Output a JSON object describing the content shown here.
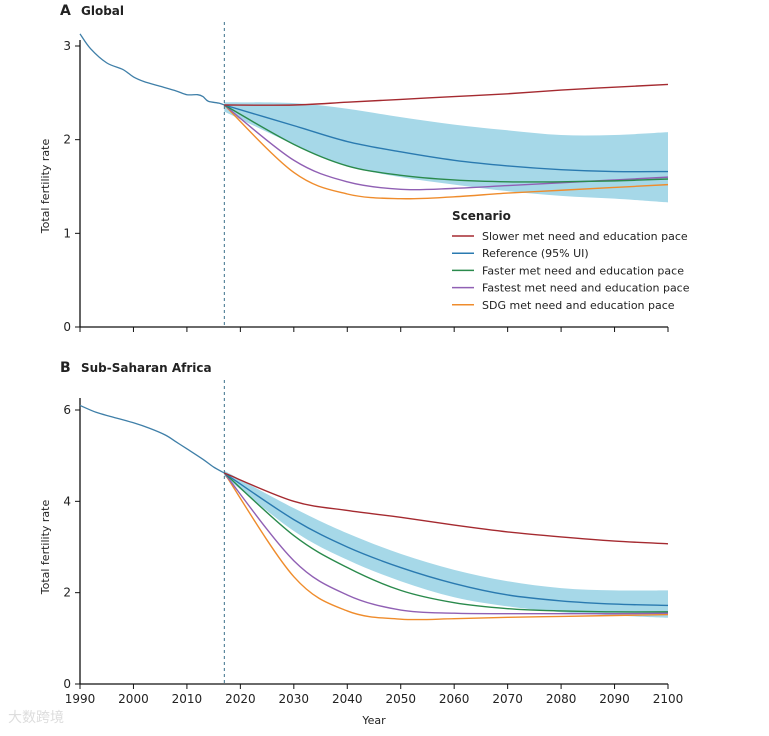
{
  "watermark": "大数跨境",
  "colors": {
    "slower": "#a52a30",
    "reference": "#2a7ab0",
    "faster": "#2a8a4c",
    "fastest": "#9060b4",
    "sdg": "#ef8c2c",
    "band": "#a6d8e8"
  },
  "legend": {
    "title": "Scenario",
    "items": [
      {
        "key": "slower",
        "label": "Slower met need and education pace"
      },
      {
        "key": "reference",
        "label": "Reference (95% UI)"
      },
      {
        "key": "faster",
        "label": "Faster met need and education pace"
      },
      {
        "key": "fastest",
        "label": "Fastest met need and education pace"
      },
      {
        "key": "sdg",
        "label": "SDG met need and education pace"
      }
    ]
  },
  "chart_data": [
    {
      "type": "line",
      "panel_letter": "A",
      "title": "Global",
      "xlabel": "",
      "ylabel": "Total fertility rate",
      "xlim": [
        1990,
        2100
      ],
      "ylim": [
        0,
        3
      ],
      "yticks": [
        0,
        1,
        2,
        3
      ],
      "forecast_start": 2017,
      "history": {
        "x": [
          1990,
          1992,
          1995,
          1998,
          2000,
          2002,
          2005,
          2008,
          2010,
          2012,
          2013,
          2014,
          2016,
          2017
        ],
        "y": [
          3.13,
          2.97,
          2.82,
          2.75,
          2.67,
          2.62,
          2.57,
          2.52,
          2.48,
          2.48,
          2.46,
          2.41,
          2.39,
          2.37
        ]
      },
      "forecast_x": [
        2017,
        2030,
        2040,
        2050,
        2060,
        2070,
        2080,
        2090,
        2100
      ],
      "series": {
        "slower": [
          2.37,
          2.37,
          2.4,
          2.43,
          2.46,
          2.49,
          2.53,
          2.56,
          2.59
        ],
        "reference": [
          2.37,
          2.15,
          1.98,
          1.87,
          1.78,
          1.72,
          1.68,
          1.66,
          1.66
        ],
        "reference_upper": [
          2.4,
          2.39,
          2.33,
          2.24,
          2.16,
          2.1,
          2.05,
          2.05,
          2.08
        ],
        "reference_lower": [
          2.3,
          1.95,
          1.72,
          1.6,
          1.52,
          1.45,
          1.4,
          1.37,
          1.33
        ],
        "faster": [
          2.37,
          1.95,
          1.72,
          1.62,
          1.57,
          1.55,
          1.55,
          1.56,
          1.58
        ],
        "fastest": [
          2.37,
          1.78,
          1.55,
          1.47,
          1.48,
          1.51,
          1.54,
          1.57,
          1.6
        ],
        "sdg": [
          2.37,
          1.65,
          1.42,
          1.37,
          1.39,
          1.43,
          1.46,
          1.49,
          1.52
        ]
      }
    },
    {
      "type": "line",
      "panel_letter": "B",
      "title": "Sub-Saharan Africa",
      "xlabel": "Year",
      "ylabel": "Total fertility rate",
      "xlim": [
        1990,
        2100
      ],
      "xticks": [
        1990,
        2000,
        2010,
        2020,
        2030,
        2040,
        2050,
        2060,
        2070,
        2080,
        2090,
        2100
      ],
      "ylim": [
        0,
        6
      ],
      "yticks": [
        0,
        2,
        4,
        6
      ],
      "forecast_start": 2017,
      "history": {
        "x": [
          1990,
          1993,
          1996,
          2000,
          2003,
          2006,
          2008,
          2010,
          2013,
          2015,
          2017
        ],
        "y": [
          6.1,
          5.95,
          5.85,
          5.72,
          5.6,
          5.45,
          5.3,
          5.15,
          4.92,
          4.75,
          4.62
        ]
      },
      "forecast_x": [
        2017,
        2030,
        2040,
        2050,
        2060,
        2070,
        2080,
        2090,
        2100
      ],
      "series": {
        "slower": [
          4.62,
          4.0,
          3.8,
          3.65,
          3.48,
          3.33,
          3.22,
          3.13,
          3.07
        ],
        "reference": [
          4.62,
          3.6,
          3.0,
          2.55,
          2.2,
          1.95,
          1.82,
          1.75,
          1.72
        ],
        "reference_upper": [
          4.67,
          3.85,
          3.3,
          2.85,
          2.5,
          2.25,
          2.1,
          2.05,
          2.05
        ],
        "reference_lower": [
          4.55,
          3.35,
          2.72,
          2.25,
          1.9,
          1.7,
          1.57,
          1.5,
          1.45
        ],
        "faster": [
          4.62,
          3.25,
          2.55,
          2.05,
          1.78,
          1.65,
          1.6,
          1.58,
          1.58
        ],
        "fastest": [
          4.62,
          2.7,
          1.95,
          1.62,
          1.55,
          1.54,
          1.54,
          1.54,
          1.55
        ],
        "sdg": [
          4.62,
          2.35,
          1.6,
          1.42,
          1.43,
          1.46,
          1.48,
          1.5,
          1.52
        ]
      }
    }
  ]
}
